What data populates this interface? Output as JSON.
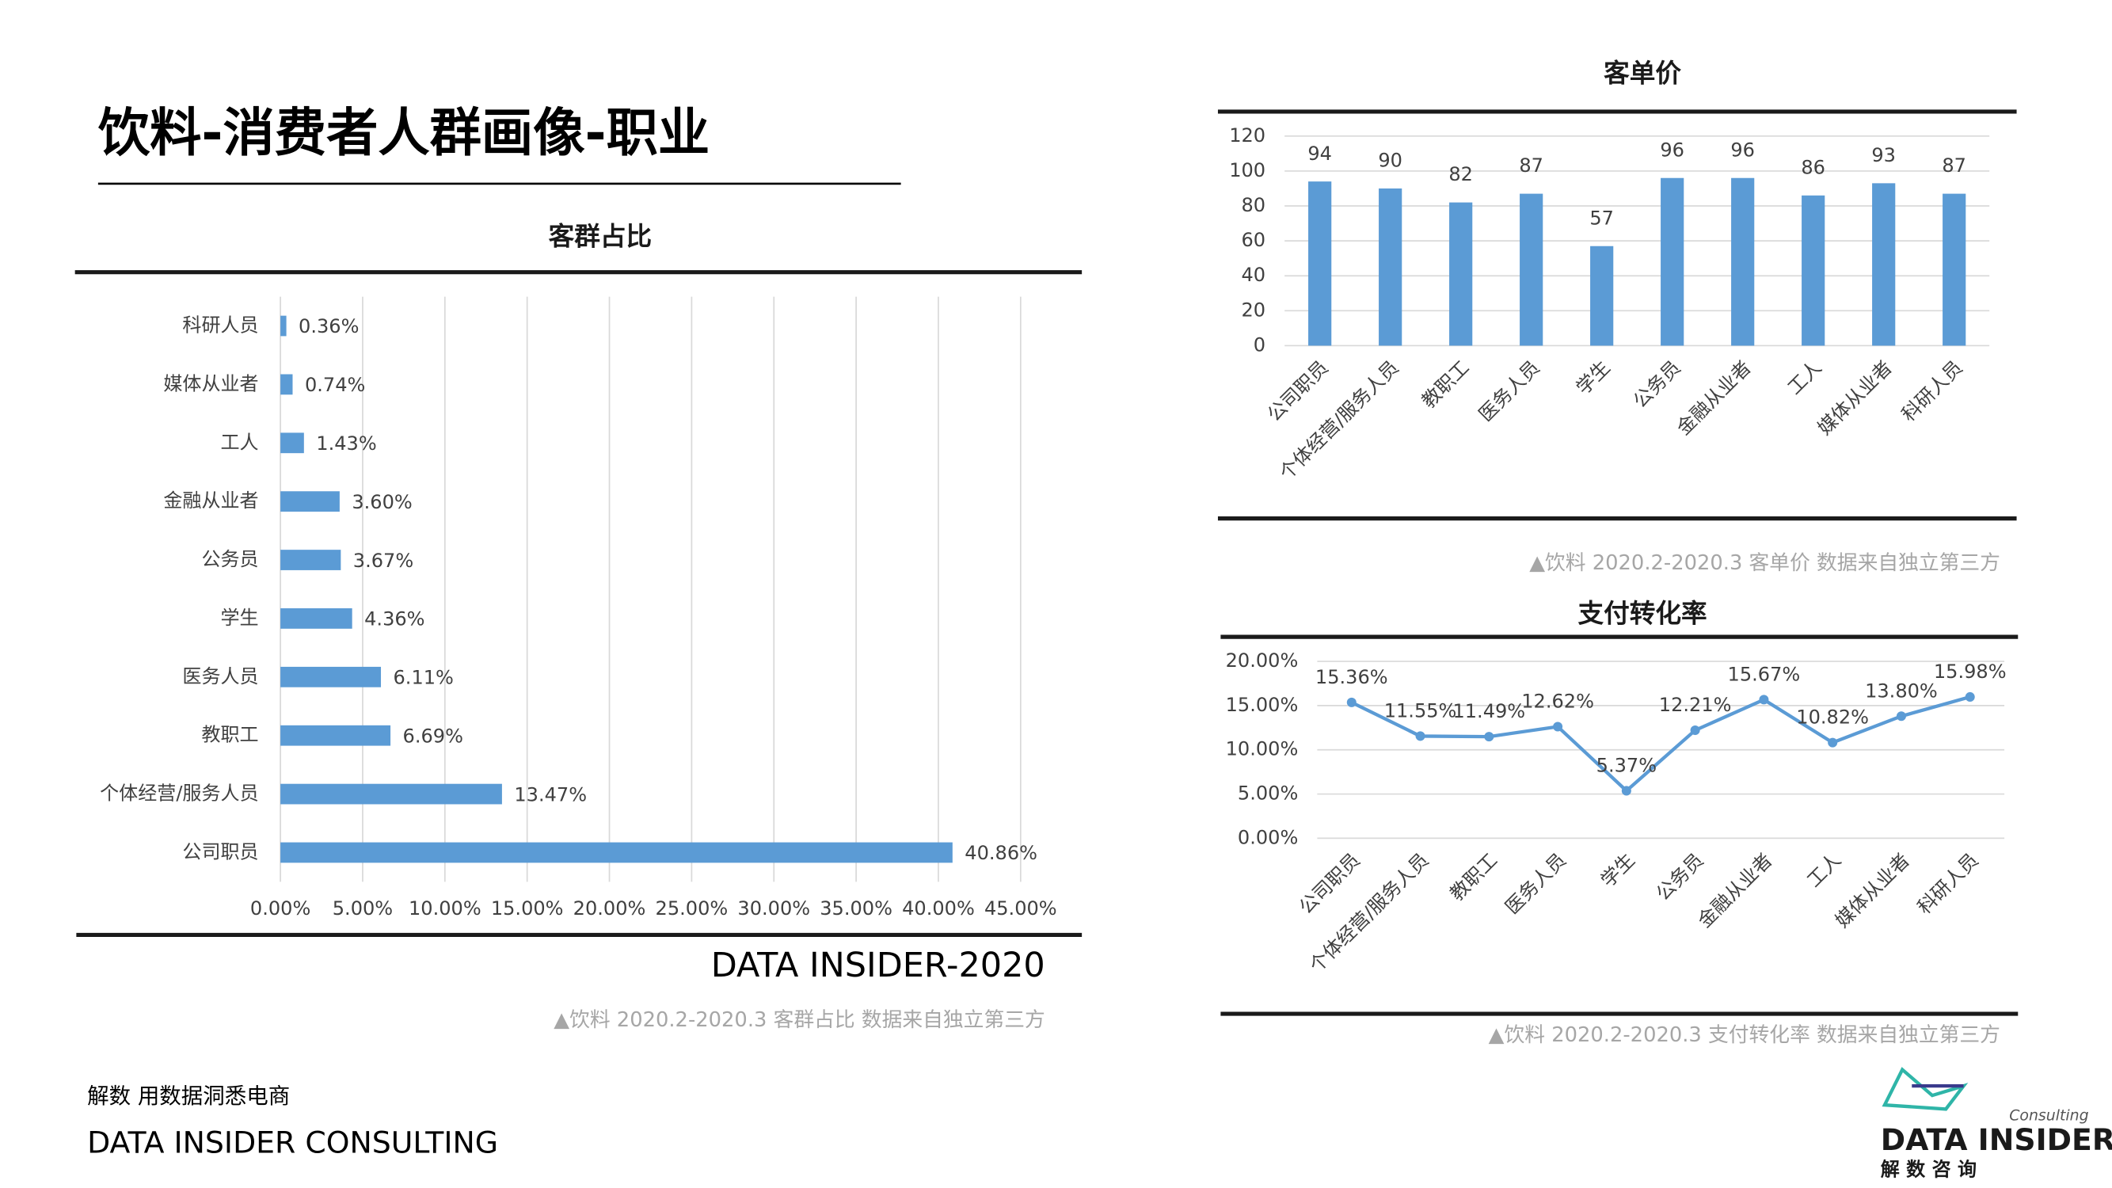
{
  "title": "饮料-消费者人群画像-职业",
  "footer": {
    "slogan": "解数 用数据洞悉电商",
    "company": "DATA INSIDER CONSULTING"
  },
  "logo": {
    "name": "DATA INSIDER",
    "tag": "Consulting",
    "cn": "解 数 咨 询"
  },
  "chart_data": [
    {
      "type": "bar",
      "horizontal": true,
      "title": "客群占比",
      "brand": "DATA INSIDER-2020",
      "note": "▲饮料 2020.2-2020.3 客群占比 数据来自独立第三方",
      "color": "#5b9bd5",
      "grid": true,
      "categories": [
        "科研人员",
        "媒体从业者",
        "工人",
        "金融从业者",
        "公务员",
        "学生",
        "医务人员",
        "教职工",
        "个体经营/服务人员",
        "公司职员"
      ],
      "values": [
        0.36,
        0.74,
        1.43,
        3.6,
        3.67,
        4.36,
        6.11,
        6.69,
        13.47,
        40.86
      ],
      "value_labels": [
        "0.36%",
        "0.74%",
        "1.43%",
        "3.60%",
        "3.67%",
        "4.36%",
        "6.11%",
        "6.69%",
        "13.47%",
        "40.86%"
      ],
      "xlim": [
        0,
        45
      ],
      "xticks": [
        {
          "value": 0,
          "label": "0.00%"
        },
        {
          "value": 5,
          "label": "5.00%"
        },
        {
          "value": 10,
          "label": "10.00%"
        },
        {
          "value": 15,
          "label": "15.00%"
        },
        {
          "value": 20,
          "label": "20.00%"
        },
        {
          "value": 25,
          "label": "25.00%"
        },
        {
          "value": 30,
          "label": "30.00%"
        },
        {
          "value": 35,
          "label": "35.00%"
        },
        {
          "value": 40,
          "label": "40.00%"
        },
        {
          "value": 45,
          "label": "45.00%"
        }
      ]
    },
    {
      "type": "bar",
      "title": "客单价",
      "note": "▲饮料 2020.2-2020.3 客单价 数据来自独立第三方",
      "color": "#5b9bd5",
      "grid": true,
      "categories": [
        "公司职员",
        "个体经营/服务人员",
        "教职工",
        "医务人员",
        "学生",
        "公务员",
        "金融从业者",
        "工人",
        "媒体从业者",
        "科研人员"
      ],
      "values": [
        94,
        90,
        82,
        87,
        57,
        96,
        96,
        86,
        93,
        87
      ],
      "ylim": [
        0,
        120
      ],
      "yticks": [
        0,
        20,
        40,
        60,
        80,
        100,
        120
      ]
    },
    {
      "type": "line",
      "title": "支付转化率",
      "note": "▲饮料 2020.2-2020.3 支付转化率 数据来自独立第三方",
      "color": "#5b9bd5",
      "grid": true,
      "categories": [
        "公司职员",
        "个体经营/服务人员",
        "教职工",
        "医务人员",
        "学生",
        "公务员",
        "金融从业者",
        "工人",
        "媒体从业者",
        "科研人员"
      ],
      "values": [
        15.36,
        11.55,
        11.49,
        12.62,
        5.37,
        12.21,
        15.67,
        10.82,
        13.8,
        15.98
      ],
      "value_labels": [
        "15.36%",
        "11.55%",
        "11.49%",
        "12.62%",
        "5.37%",
        "12.21%",
        "15.67%",
        "10.82%",
        "13.80%",
        "15.98%"
      ],
      "ylim": [
        0,
        20
      ],
      "yticks": [
        {
          "value": 0,
          "label": "0.00%"
        },
        {
          "value": 5,
          "label": "5.00%"
        },
        {
          "value": 10,
          "label": "10.00%"
        },
        {
          "value": 15,
          "label": "15.00%"
        },
        {
          "value": 20,
          "label": "20.00%"
        }
      ]
    }
  ]
}
